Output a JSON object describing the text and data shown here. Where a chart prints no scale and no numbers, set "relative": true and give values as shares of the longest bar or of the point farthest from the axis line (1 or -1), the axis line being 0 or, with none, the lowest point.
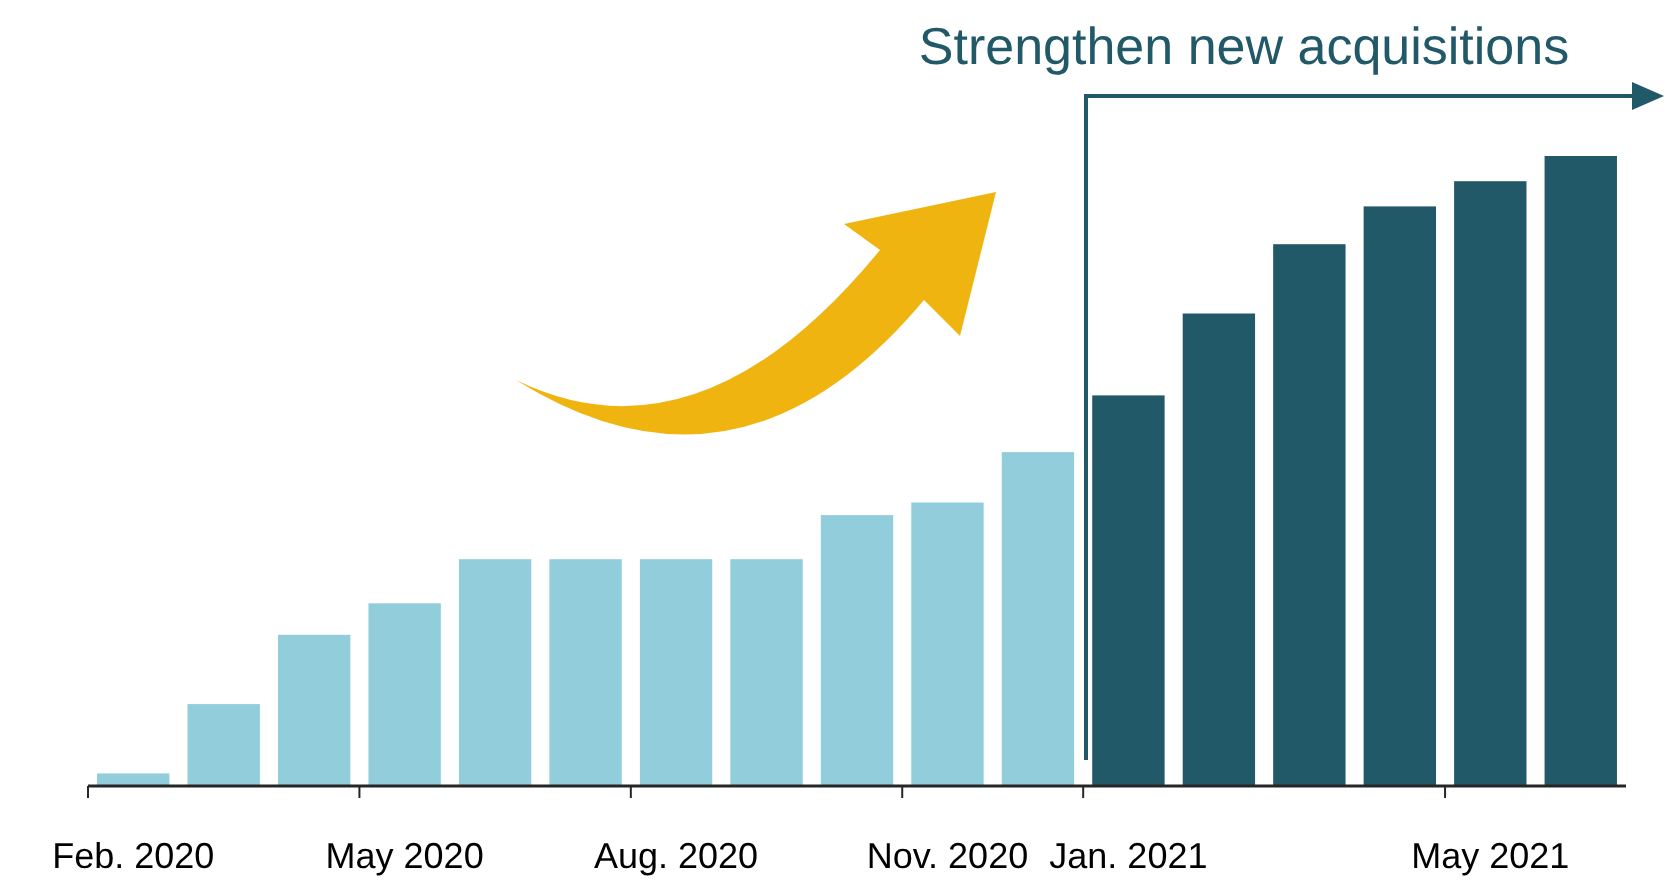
{
  "chart_data": {
    "type": "bar",
    "relative": true,
    "categories": [
      "Feb. 2020",
      null,
      null,
      "May 2020",
      null,
      null,
      "Aug. 2020",
      null,
      null,
      "Nov. 2020",
      null,
      "Jan. 2021",
      null,
      null,
      null,
      "May 2021",
      null
    ],
    "values": [
      0.02,
      0.13,
      0.24,
      0.29,
      0.36,
      0.36,
      0.36,
      0.36,
      0.43,
      0.45,
      0.53,
      0.62,
      0.75,
      0.86,
      0.92,
      0.96,
      1
    ],
    "colors": [
      "#92cddc",
      "#92cddc",
      "#92cddc",
      "#92cddc",
      "#92cddc",
      "#92cddc",
      "#92cddc",
      "#92cddc",
      "#92cddc",
      "#92cddc",
      "#92cddc",
      "#215968",
      "#215968",
      "#215968",
      "#215968",
      "#215968",
      "#215968"
    ],
    "annotations": [
      "Strengthen new acquisitions"
    ]
  }
}
